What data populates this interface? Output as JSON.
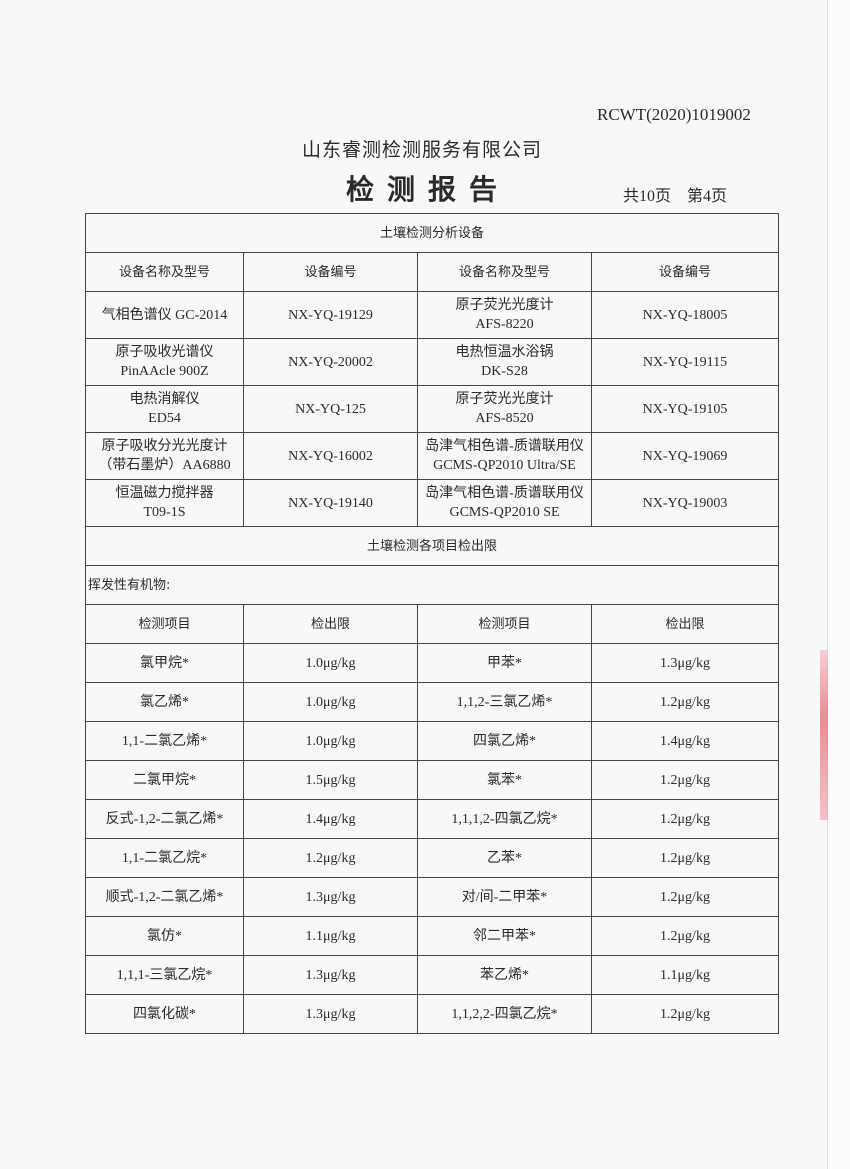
{
  "report_code": "RCWT(2020)1019002",
  "company": "山东睿测检测服务有限公司",
  "title": "检测报告",
  "pages": {
    "total": "共10页",
    "current": "第4页"
  },
  "equipment": {
    "section_title": "土壤检测分析设备",
    "headers": [
      "设备名称及型号",
      "设备编号",
      "设备名称及型号",
      "设备编号"
    ],
    "rows": [
      {
        "name1": "气相色谱仪 GC-2014",
        "id1": "NX-YQ-19129",
        "name2": "原子荧光光度计\nAFS-8220",
        "id2": "NX-YQ-18005"
      },
      {
        "name1": "原子吸收光谱仪\nPinAAcle 900Z",
        "id1": "NX-YQ-20002",
        "name2": "电热恒温水浴锅\nDK-S28",
        "id2": "NX-YQ-19115"
      },
      {
        "name1": "电热消解仪\nED54",
        "id1": "NX-YQ-125",
        "name2": "原子荧光光度计\nAFS-8520",
        "id2": "NX-YQ-19105"
      },
      {
        "name1": "原子吸收分光光度计\n（带石墨炉）AA6880",
        "id1": "NX-YQ-16002",
        "name2": "岛津气相色谱-质谱联用仪\nGCMS-QP2010 Ultra/SE",
        "id2": "NX-YQ-19069"
      },
      {
        "name1": "恒温磁力搅拌器\nT09-1S",
        "id1": "NX-YQ-19140",
        "name2": "岛津气相色谱-质谱联用仪\nGCMS-QP2010 SE",
        "id2": "NX-YQ-19003"
      }
    ]
  },
  "limits": {
    "section_title": "土壤检测各项目检出限",
    "category": "挥发性有机物:",
    "headers": [
      "检测项目",
      "检出限",
      "检测项目",
      "检出限"
    ],
    "rows": [
      [
        "氯甲烷*",
        "1.0μg/kg",
        "甲苯*",
        "1.3μg/kg"
      ],
      [
        "氯乙烯*",
        "1.0μg/kg",
        "1,1,2-三氯乙烯*",
        "1.2μg/kg"
      ],
      [
        "1,1-二氯乙烯*",
        "1.0μg/kg",
        "四氯乙烯*",
        "1.4μg/kg"
      ],
      [
        "二氯甲烷*",
        "1.5μg/kg",
        "氯苯*",
        "1.2μg/kg"
      ],
      [
        "反式-1,2-二氯乙烯*",
        "1.4μg/kg",
        "1,1,1,2-四氯乙烷*",
        "1.2μg/kg"
      ],
      [
        "1,1-二氯乙烷*",
        "1.2μg/kg",
        "乙苯*",
        "1.2μg/kg"
      ],
      [
        "顺式-1,2-二氯乙烯*",
        "1.3μg/kg",
        "对/间-二甲苯*",
        "1.2μg/kg"
      ],
      [
        "氯仿*",
        "1.1μg/kg",
        "邻二甲苯*",
        "1.2μg/kg"
      ],
      [
        "1,1,1-三氯乙烷*",
        "1.3μg/kg",
        "苯乙烯*",
        "1.1μg/kg"
      ],
      [
        "四氯化碳*",
        "1.3μg/kg",
        "1,1,2,2-四氯乙烷*",
        "1.2μg/kg"
      ]
    ]
  }
}
